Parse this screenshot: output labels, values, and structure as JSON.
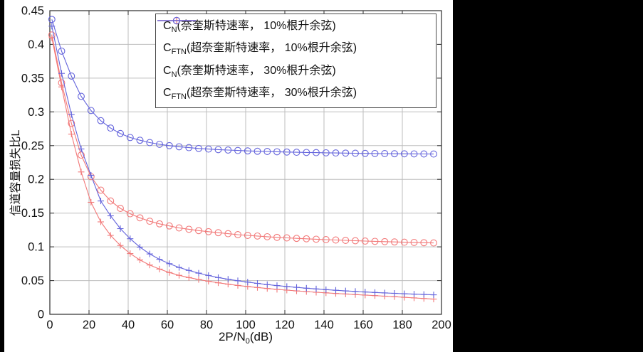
{
  "chart_data": {
    "type": "line",
    "title": "",
    "xlabel_prefix": "2P/N",
    "xlabel_sub": "0",
    "xlabel_suffix": "(dB)",
    "ylabel": "信道容量损失比L",
    "xlim": [
      0,
      200
    ],
    "ylim": [
      0,
      0.45
    ],
    "x_ticks": [
      "0",
      "20",
      "40",
      "60",
      "80",
      "100",
      "120",
      "140",
      "160",
      "180",
      "200"
    ],
    "y_ticks": [
      "0",
      "0.05",
      "0.1",
      "0.15",
      "0.2",
      "0.25",
      "0.3",
      "0.35",
      "0.4",
      "0.45"
    ],
    "grid": true,
    "legend_position": "top-center-inside",
    "x": [
      1,
      6,
      11,
      16,
      21,
      26,
      31,
      36,
      41,
      46,
      51,
      56,
      61,
      66,
      71,
      76,
      81,
      86,
      91,
      96,
      101,
      106,
      111,
      116,
      121,
      126,
      131,
      136,
      141,
      146,
      151,
      156,
      161,
      166,
      171,
      176,
      181,
      186,
      191,
      196
    ],
    "series": [
      {
        "id": "cn-10rrc",
        "name_prefix": "C",
        "name_sub": "N",
        "name_rest": "(奈奎斯特速率， 10%根升余弦)",
        "color": "#f27979",
        "marker": "circle",
        "legend_marker": "circle",
        "values": [
          0.414,
          0.343,
          0.283,
          0.236,
          0.204,
          0.184,
          0.168,
          0.157,
          0.149,
          0.143,
          0.138,
          0.134,
          0.131,
          0.128,
          0.126,
          0.124,
          0.1225,
          0.121,
          0.1195,
          0.118,
          0.117,
          0.116,
          0.115,
          0.114,
          0.1133,
          0.1126,
          0.1119,
          0.1113,
          0.1107,
          0.1101,
          0.1096,
          0.1091,
          0.1086,
          0.1081,
          0.1077,
          0.1073,
          0.1069,
          0.1065,
          0.1061,
          0.1058
        ]
      },
      {
        "id": "cftn-10rrc",
        "name_prefix": "C",
        "name_sub": "FTN",
        "name_rest": "(超奈奎斯特速率， 10%根升余弦)",
        "color": "#f27979",
        "marker": "plus",
        "legend_marker": "plus",
        "values": [
          0.41,
          0.337,
          0.267,
          0.211,
          0.166,
          0.137,
          0.117,
          0.102,
          0.09,
          0.0805,
          0.073,
          0.067,
          0.062,
          0.0578,
          0.0545,
          0.0515,
          0.049,
          0.0467,
          0.0447,
          0.0428,
          0.0412,
          0.0397,
          0.0383,
          0.037,
          0.0358,
          0.0347,
          0.0337,
          0.0327,
          0.0318,
          0.0309,
          0.0301,
          0.0293,
          0.0285,
          0.0277,
          0.0269,
          0.0261,
          0.0252,
          0.0243,
          0.0234,
          0.0225
        ]
      },
      {
        "id": "cn-30rrc",
        "name_prefix": "C",
        "name_sub": "N",
        "name_rest": "(奈奎斯特速率， 30%根升余弦)",
        "color": "#6464dc",
        "marker": "circle",
        "legend_marker": "circle",
        "values": [
          0.437,
          0.39,
          0.353,
          0.323,
          0.302,
          0.287,
          0.276,
          0.268,
          0.262,
          0.258,
          0.2545,
          0.252,
          0.25,
          0.2483,
          0.247,
          0.2458,
          0.2449,
          0.2441,
          0.2434,
          0.2428,
          0.2422,
          0.2417,
          0.2413,
          0.2409,
          0.2405,
          0.2402,
          0.2399,
          0.2396,
          0.2393,
          0.2391,
          0.2389,
          0.2387,
          0.2385,
          0.2383,
          0.2382,
          0.238,
          0.2379,
          0.2377,
          0.2376,
          0.2375
        ]
      },
      {
        "id": "cftn-30rrc",
        "name_prefix": "C",
        "name_sub": "FTN",
        "name_rest": "(超奈奎斯特速率， 30%根升余弦)",
        "color": "#6464dc",
        "marker": "plus",
        "legend_marker": "line",
        "values": [
          0.427,
          0.357,
          0.296,
          0.245,
          0.206,
          0.168,
          0.146,
          0.127,
          0.112,
          0.0995,
          0.0895,
          0.0815,
          0.075,
          0.0695,
          0.065,
          0.061,
          0.0575,
          0.0545,
          0.052,
          0.0497,
          0.0477,
          0.0458,
          0.0441,
          0.0426,
          0.0412,
          0.0399,
          0.0387,
          0.0376,
          0.0366,
          0.0356,
          0.0347,
          0.0339,
          0.0331,
          0.0324,
          0.0317,
          0.0311,
          0.0305,
          0.0299,
          0.0294,
          0.0289
        ]
      }
    ]
  }
}
